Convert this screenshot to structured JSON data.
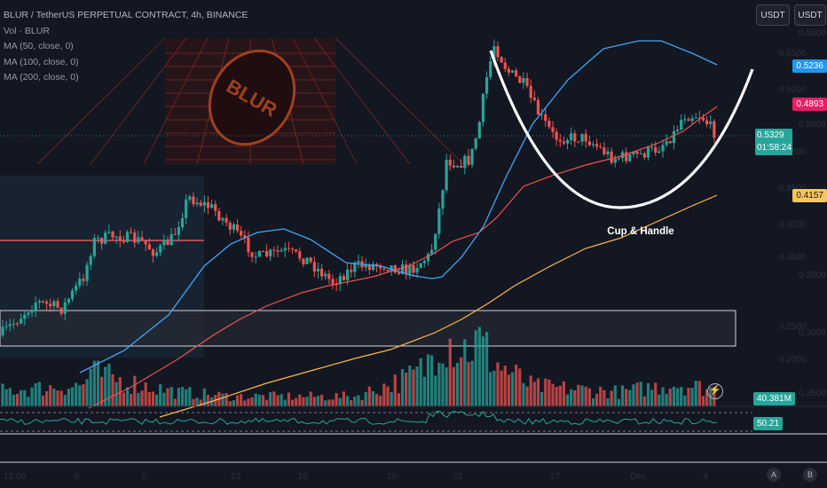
{
  "header": {
    "symbol": "BLUR / TetherUS PERPETUAL CONTRACT, 4h, BINANCE",
    "vol": "Vol · BLUR",
    "ma1": "MA (50, close, 0)",
    "ma2": "MA (100, close, 0)",
    "ma3": "MA (200, close, 0)",
    "currency_buttons": [
      "USDT",
      "USDT"
    ]
  },
  "badges": {
    "ma50": "0.5236",
    "ma100": "0.4893",
    "price": "0.5329",
    "countdown": "01:58:24",
    "ma200": "0.4157",
    "volume": "40.381M",
    "rsi": "50.21"
  },
  "corner_buttons": [
    "A",
    "B"
  ],
  "colors": {
    "background": "#131722",
    "up": "#26a69a",
    "down": "#ef5350",
    "ma50": "#42a5f5",
    "ma100": "#ef5350",
    "ma200": "#ffb74d",
    "cup": "#ffffff",
    "rsi": "#26a69a",
    "badge_ma50": "#2196f3",
    "badge_ma100": "#e91e63",
    "badge_price": "#26a69a",
    "badge_ma200": "#f8c55e"
  },
  "chart_data": {
    "type": "candlestick",
    "title": "BLUR / TetherUS PERPETUAL CONTRACT, 4h, BINANCE",
    "price_axis_ticks": [
      "0.5500",
      "0.6500",
      "0.6000",
      "0.5500",
      "0.4500",
      "0.4500",
      "0.4000",
      "0.3500",
      "0.3500",
      "0.2500",
      "0.3000",
      "0.2000",
      "0.2500"
    ],
    "time_axis_ticks": [
      "12:00",
      "6",
      "9",
      "13",
      "16",
      "20",
      "23",
      "27",
      "Dec",
      "4"
    ],
    "price_range": [
      0.19,
      0.67
    ],
    "moving_averages": [
      {
        "name": "MA (50, close, 0)",
        "last": 0.5236
      },
      {
        "name": "MA (100, close, 0)",
        "last": 0.4893
      },
      {
        "name": "MA (200, close, 0)",
        "last": 0.4157
      }
    ],
    "last_price": 0.5329,
    "volume_last": "40.381M",
    "rsi_last": 50.21,
    "annotation": "Cup & Handle",
    "grid": false
  }
}
